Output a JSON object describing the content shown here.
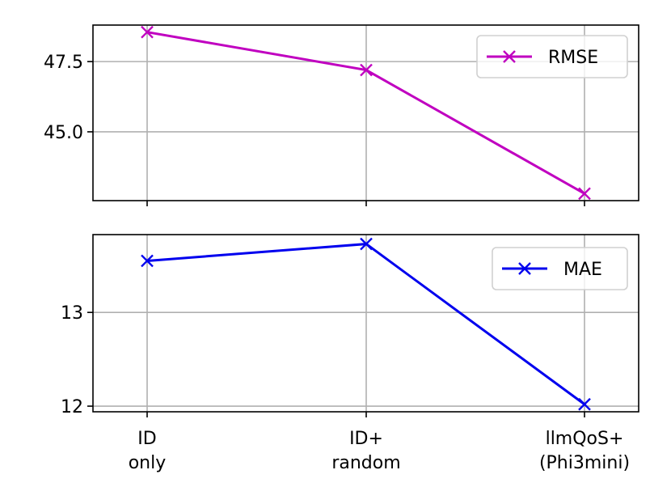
{
  "chart_data": [
    {
      "type": "line",
      "categories": [
        "ID\nonly",
        "ID+\nrandom",
        "llmQoS+\n(Phi3mini)"
      ],
      "series": [
        {
          "name": "RMSE",
          "values": [
            48.55,
            47.2,
            42.8
          ],
          "color": "#c000c0",
          "marker": "x"
        }
      ],
      "yticks": [
        45.0,
        47.5
      ],
      "ytick_labels": [
        "45.0",
        "47.5"
      ],
      "ylim": [
        42.55,
        48.8
      ],
      "grid": true,
      "legend": "upper right",
      "xtick_labels_visible": false
    },
    {
      "type": "line",
      "categories": [
        "ID\nonly",
        "ID+\nrandom",
        "llmQoS+\n(Phi3mini)"
      ],
      "series": [
        {
          "name": "MAE",
          "values": [
            13.55,
            13.73,
            12.02
          ],
          "color": "#0000ee",
          "marker": "x"
        }
      ],
      "yticks": [
        12,
        13
      ],
      "ytick_labels": [
        "12",
        "13"
      ],
      "ylim": [
        11.94,
        13.83
      ],
      "grid": true,
      "legend": "upper right",
      "xtick_labels_visible": true
    }
  ]
}
